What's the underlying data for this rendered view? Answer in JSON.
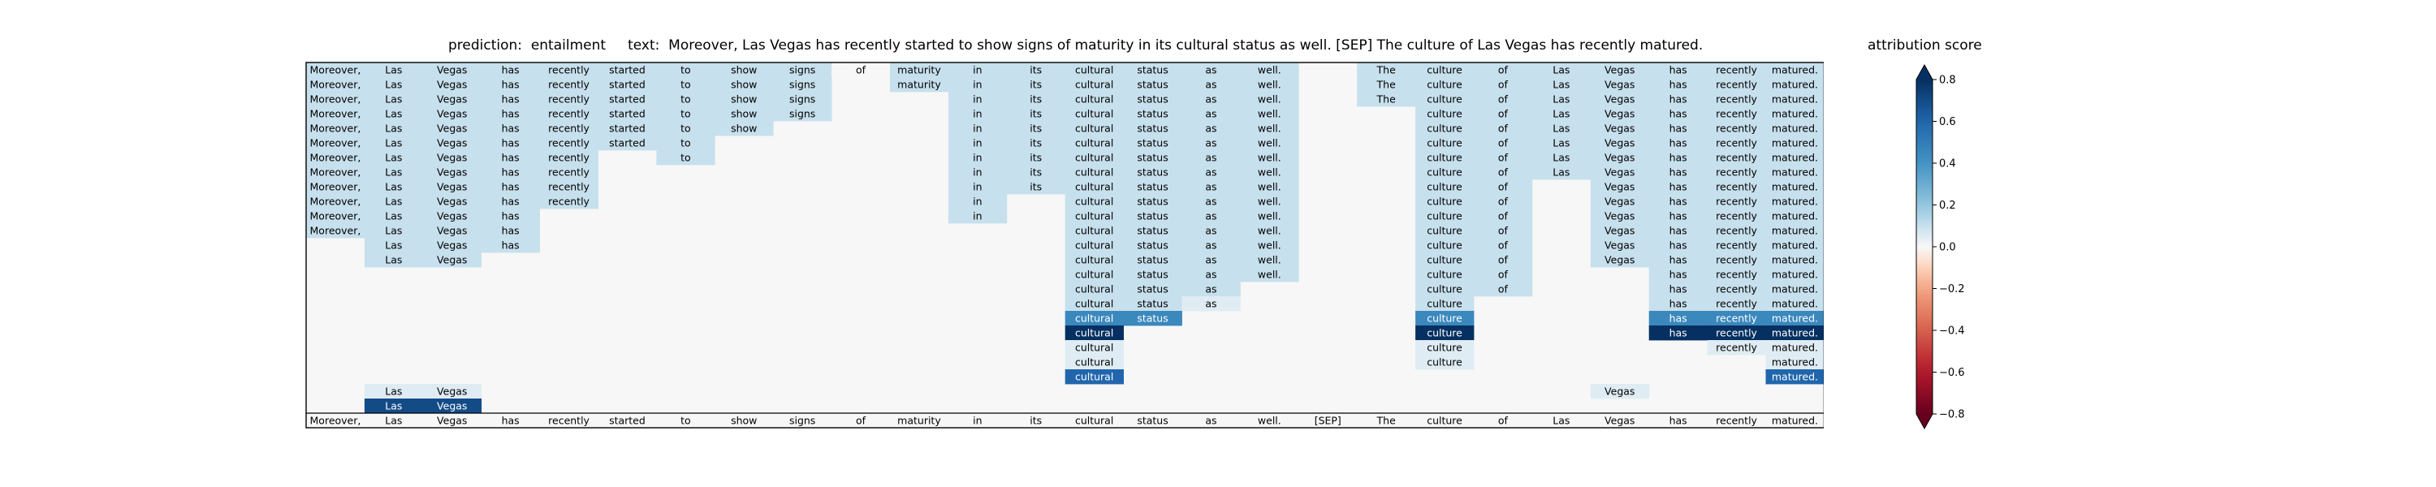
{
  "chart_data": {
    "type": "heatmap",
    "title": "prediction:  entailment     text:  Moreover, Las Vegas has recently started to show signs of maturity in its cultural status as well. [SEP] The culture of Las Vegas has recently matured.",
    "colorbar_label": "attribution score",
    "colorbar_ticks": [
      "−0.8",
      "−0.6",
      "−0.4",
      "−0.2",
      "0.0",
      "0.2",
      "0.4",
      "0.6",
      "0.8"
    ],
    "colorbar_range": [
      -0.8,
      0.8
    ],
    "colormap": "RdBu",
    "tokens": [
      "Moreover,",
      "Las",
      "Vegas",
      "has",
      "recently",
      "started",
      "to",
      "show",
      "signs",
      "of",
      "maturity",
      "in",
      "its",
      "cultural",
      "status",
      "as",
      "well.",
      "[SEP]",
      "The",
      "culture",
      "of",
      "Las",
      "Vegas",
      "has",
      "recently",
      "matured."
    ],
    "rows": [
      [
        0.1,
        0.1,
        0.1,
        0.1,
        0.1,
        0.1,
        0.1,
        0.1,
        0.1,
        0.0,
        0.1,
        0.1,
        0.1,
        0.1,
        0.1,
        0.1,
        0.1,
        null,
        0.1,
        0.1,
        0.1,
        0.1,
        0.1,
        0.1,
        0.1,
        0.1
      ],
      [
        0.1,
        0.1,
        0.1,
        0.1,
        0.1,
        0.1,
        0.1,
        0.1,
        0.1,
        null,
        0.1,
        0.1,
        0.1,
        0.1,
        0.1,
        0.1,
        0.1,
        null,
        0.1,
        0.1,
        0.1,
        0.1,
        0.1,
        0.1,
        0.1,
        0.1
      ],
      [
        0.1,
        0.1,
        0.1,
        0.1,
        0.1,
        0.1,
        0.1,
        0.1,
        0.1,
        null,
        null,
        0.1,
        0.1,
        0.1,
        0.1,
        0.1,
        0.1,
        null,
        0.1,
        0.1,
        0.1,
        0.1,
        0.1,
        0.1,
        0.1,
        0.1
      ],
      [
        0.1,
        0.1,
        0.1,
        0.1,
        0.1,
        0.1,
        0.1,
        0.1,
        0.1,
        null,
        null,
        0.1,
        0.1,
        0.1,
        0.1,
        0.1,
        0.1,
        null,
        null,
        0.1,
        0.1,
        0.1,
        0.1,
        0.1,
        0.1,
        0.1
      ],
      [
        0.1,
        0.1,
        0.1,
        0.1,
        0.1,
        0.1,
        0.1,
        0.1,
        null,
        null,
        null,
        0.1,
        0.1,
        0.1,
        0.1,
        0.1,
        0.1,
        null,
        null,
        0.1,
        0.1,
        0.1,
        0.1,
        0.1,
        0.1,
        0.1
      ],
      [
        0.1,
        0.1,
        0.1,
        0.1,
        0.1,
        0.1,
        0.1,
        null,
        null,
        null,
        null,
        0.1,
        0.1,
        0.1,
        0.1,
        0.1,
        0.1,
        null,
        null,
        0.1,
        0.1,
        0.1,
        0.1,
        0.1,
        0.1,
        0.1
      ],
      [
        0.1,
        0.1,
        0.1,
        0.1,
        0.1,
        null,
        0.1,
        null,
        null,
        null,
        null,
        0.1,
        0.1,
        0.1,
        0.1,
        0.1,
        0.1,
        null,
        null,
        0.1,
        0.1,
        0.1,
        0.1,
        0.1,
        0.1,
        0.1
      ],
      [
        0.1,
        0.1,
        0.1,
        0.1,
        0.1,
        null,
        null,
        null,
        null,
        null,
        null,
        0.1,
        0.1,
        0.1,
        0.1,
        0.1,
        0.1,
        null,
        null,
        0.1,
        0.1,
        0.1,
        0.1,
        0.1,
        0.1,
        0.1
      ],
      [
        0.1,
        0.1,
        0.1,
        0.1,
        0.1,
        null,
        null,
        null,
        null,
        null,
        null,
        0.1,
        0.1,
        0.1,
        0.1,
        0.1,
        0.1,
        null,
        null,
        0.1,
        0.1,
        null,
        0.1,
        0.1,
        0.1,
        0.1
      ],
      [
        0.1,
        0.1,
        0.1,
        0.1,
        0.1,
        null,
        null,
        null,
        null,
        null,
        null,
        0.1,
        null,
        0.1,
        0.1,
        0.1,
        0.1,
        null,
        null,
        0.1,
        0.1,
        null,
        0.1,
        0.1,
        0.1,
        0.1
      ],
      [
        0.1,
        0.1,
        0.1,
        0.1,
        null,
        null,
        null,
        null,
        null,
        null,
        null,
        0.1,
        null,
        0.1,
        0.1,
        0.1,
        0.1,
        null,
        null,
        0.1,
        0.1,
        null,
        0.1,
        0.1,
        0.1,
        0.1
      ],
      [
        0.1,
        0.1,
        0.1,
        0.1,
        null,
        null,
        null,
        null,
        null,
        null,
        null,
        null,
        null,
        0.1,
        0.1,
        0.1,
        0.1,
        null,
        null,
        0.1,
        0.1,
        null,
        0.1,
        0.1,
        0.1,
        0.1
      ],
      [
        null,
        0.1,
        0.1,
        0.1,
        null,
        null,
        null,
        null,
        null,
        null,
        null,
        null,
        null,
        0.1,
        0.1,
        0.1,
        0.1,
        null,
        null,
        0.1,
        0.1,
        null,
        0.1,
        0.1,
        0.1,
        0.1
      ],
      [
        null,
        0.1,
        0.1,
        null,
        null,
        null,
        null,
        null,
        null,
        null,
        null,
        null,
        null,
        0.1,
        0.1,
        0.1,
        0.1,
        null,
        null,
        0.1,
        0.1,
        null,
        0.1,
        0.1,
        0.1,
        0.1
      ],
      [
        null,
        null,
        null,
        null,
        null,
        null,
        null,
        null,
        null,
        null,
        null,
        null,
        null,
        0.1,
        0.1,
        0.1,
        0.1,
        null,
        null,
        0.1,
        0.1,
        null,
        null,
        0.1,
        0.1,
        0.1
      ],
      [
        null,
        null,
        null,
        null,
        null,
        null,
        null,
        null,
        null,
        null,
        null,
        null,
        null,
        0.1,
        0.1,
        0.1,
        null,
        null,
        null,
        0.1,
        0.1,
        null,
        null,
        0.1,
        0.1,
        0.1
      ],
      [
        null,
        null,
        null,
        null,
        null,
        null,
        null,
        null,
        null,
        null,
        null,
        null,
        null,
        0.1,
        0.1,
        0.05,
        null,
        null,
        null,
        0.1,
        null,
        null,
        null,
        0.1,
        0.1,
        0.1
      ],
      [
        null,
        null,
        null,
        null,
        null,
        null,
        null,
        null,
        null,
        null,
        null,
        null,
        null,
        0.45,
        0.45,
        null,
        null,
        null,
        null,
        0.45,
        null,
        null,
        null,
        0.45,
        0.45,
        0.45
      ],
      [
        null,
        null,
        null,
        null,
        null,
        null,
        null,
        null,
        null,
        null,
        null,
        null,
        null,
        0.8,
        null,
        null,
        null,
        null,
        null,
        0.8,
        null,
        null,
        null,
        0.8,
        0.8,
        0.8
      ],
      [
        null,
        null,
        null,
        null,
        null,
        null,
        null,
        null,
        null,
        null,
        null,
        null,
        null,
        0.05,
        null,
        null,
        null,
        null,
        null,
        0.05,
        null,
        null,
        null,
        null,
        0.05,
        0.05
      ],
      [
        null,
        null,
        null,
        null,
        null,
        null,
        null,
        null,
        null,
        null,
        null,
        null,
        null,
        0.05,
        null,
        null,
        null,
        null,
        null,
        0.05,
        null,
        null,
        null,
        null,
        null,
        0.05
      ],
      [
        null,
        null,
        null,
        null,
        null,
        null,
        null,
        null,
        null,
        null,
        null,
        null,
        null,
        0.6,
        null,
        null,
        null,
        null,
        null,
        null,
        null,
        null,
        null,
        null,
        null,
        0.6
      ],
      [
        null,
        0.05,
        0.05,
        null,
        null,
        null,
        null,
        null,
        null,
        null,
        null,
        null,
        null,
        null,
        null,
        null,
        null,
        null,
        null,
        null,
        null,
        null,
        0.05,
        null,
        null,
        null
      ],
      [
        null,
        0.7,
        0.7,
        null,
        null,
        null,
        null,
        null,
        null,
        null,
        null,
        null,
        null,
        null,
        null,
        null,
        null,
        null,
        null,
        null,
        null,
        null,
        null,
        null,
        null,
        null
      ],
      [
        0.0,
        0.0,
        0.0,
        0.0,
        0.0,
        0.0,
        0.0,
        0.0,
        0.0,
        0.0,
        0.0,
        0.0,
        0.0,
        0.0,
        0.0,
        0.0,
        0.0,
        0.0,
        0.0,
        0.0,
        0.0,
        0.0,
        0.0,
        0.0,
        0.0,
        0.0
      ]
    ]
  }
}
